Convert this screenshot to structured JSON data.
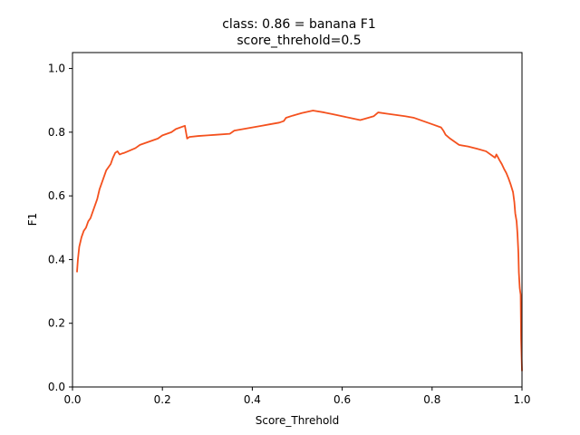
{
  "chart_data": {
    "type": "line",
    "title": "class: 0.86 = banana F1",
    "subtitle": "score_threhold=0.5",
    "xlabel": "Score_Threhold",
    "ylabel": "F1",
    "xlim": [
      0,
      1
    ],
    "ylim": [
      0,
      1.05
    ],
    "xticks": [
      "0.0",
      "0.2",
      "0.4",
      "0.6",
      "0.8",
      "1.0"
    ],
    "yticks": [
      "0.0",
      "0.2",
      "0.4",
      "0.6",
      "0.8",
      "1.0"
    ],
    "grid": false,
    "series": [
      {
        "color": "#f4511e",
        "points": [
          [
            0.01,
            0.36
          ],
          [
            0.012,
            0.4
          ],
          [
            0.015,
            0.44
          ],
          [
            0.02,
            0.47
          ],
          [
            0.025,
            0.49
          ],
          [
            0.03,
            0.5
          ],
          [
            0.035,
            0.52
          ],
          [
            0.04,
            0.53
          ],
          [
            0.045,
            0.55
          ],
          [
            0.05,
            0.57
          ],
          [
            0.055,
            0.59
          ],
          [
            0.06,
            0.62
          ],
          [
            0.065,
            0.64
          ],
          [
            0.07,
            0.66
          ],
          [
            0.075,
            0.68
          ],
          [
            0.08,
            0.69
          ],
          [
            0.085,
            0.7
          ],
          [
            0.09,
            0.72
          ],
          [
            0.095,
            0.735
          ],
          [
            0.1,
            0.74
          ],
          [
            0.105,
            0.73
          ],
          [
            0.11,
            0.733
          ],
          [
            0.115,
            0.735
          ],
          [
            0.12,
            0.738
          ],
          [
            0.13,
            0.744
          ],
          [
            0.14,
            0.75
          ],
          [
            0.15,
            0.76
          ],
          [
            0.17,
            0.77
          ],
          [
            0.19,
            0.78
          ],
          [
            0.2,
            0.79
          ],
          [
            0.21,
            0.795
          ],
          [
            0.22,
            0.8
          ],
          [
            0.23,
            0.81
          ],
          [
            0.25,
            0.82
          ],
          [
            0.255,
            0.78
          ],
          [
            0.26,
            0.785
          ],
          [
            0.28,
            0.788
          ],
          [
            0.3,
            0.79
          ],
          [
            0.32,
            0.792
          ],
          [
            0.35,
            0.795
          ],
          [
            0.36,
            0.805
          ],
          [
            0.38,
            0.81
          ],
          [
            0.4,
            0.815
          ],
          [
            0.42,
            0.82
          ],
          [
            0.44,
            0.825
          ],
          [
            0.46,
            0.83
          ],
          [
            0.47,
            0.835
          ],
          [
            0.475,
            0.845
          ],
          [
            0.49,
            0.852
          ],
          [
            0.51,
            0.86
          ],
          [
            0.535,
            0.868
          ],
          [
            0.56,
            0.862
          ],
          [
            0.58,
            0.856
          ],
          [
            0.6,
            0.85
          ],
          [
            0.62,
            0.844
          ],
          [
            0.64,
            0.838
          ],
          [
            0.65,
            0.842
          ],
          [
            0.67,
            0.85
          ],
          [
            0.68,
            0.862
          ],
          [
            0.7,
            0.858
          ],
          [
            0.72,
            0.854
          ],
          [
            0.74,
            0.85
          ],
          [
            0.76,
            0.845
          ],
          [
            0.78,
            0.835
          ],
          [
            0.8,
            0.825
          ],
          [
            0.82,
            0.815
          ],
          [
            0.825,
            0.805
          ],
          [
            0.83,
            0.792
          ],
          [
            0.84,
            0.78
          ],
          [
            0.85,
            0.77
          ],
          [
            0.86,
            0.76
          ],
          [
            0.88,
            0.755
          ],
          [
            0.9,
            0.748
          ],
          [
            0.92,
            0.74
          ],
          [
            0.935,
            0.725
          ],
          [
            0.94,
            0.72
          ],
          [
            0.943,
            0.73
          ],
          [
            0.947,
            0.72
          ],
          [
            0.95,
            0.712
          ],
          [
            0.955,
            0.7
          ],
          [
            0.96,
            0.685
          ],
          [
            0.965,
            0.672
          ],
          [
            0.97,
            0.655
          ],
          [
            0.975,
            0.635
          ],
          [
            0.98,
            0.612
          ],
          [
            0.983,
            0.58
          ],
          [
            0.985,
            0.545
          ],
          [
            0.988,
            0.52
          ],
          [
            0.99,
            0.48
          ],
          [
            0.992,
            0.42
          ],
          [
            0.993,
            0.36
          ],
          [
            0.995,
            0.31
          ],
          [
            0.997,
            0.29
          ],
          [
            0.998,
            0.15
          ],
          [
            0.999,
            0.1
          ],
          [
            1.0,
            0.05
          ]
        ]
      }
    ]
  }
}
